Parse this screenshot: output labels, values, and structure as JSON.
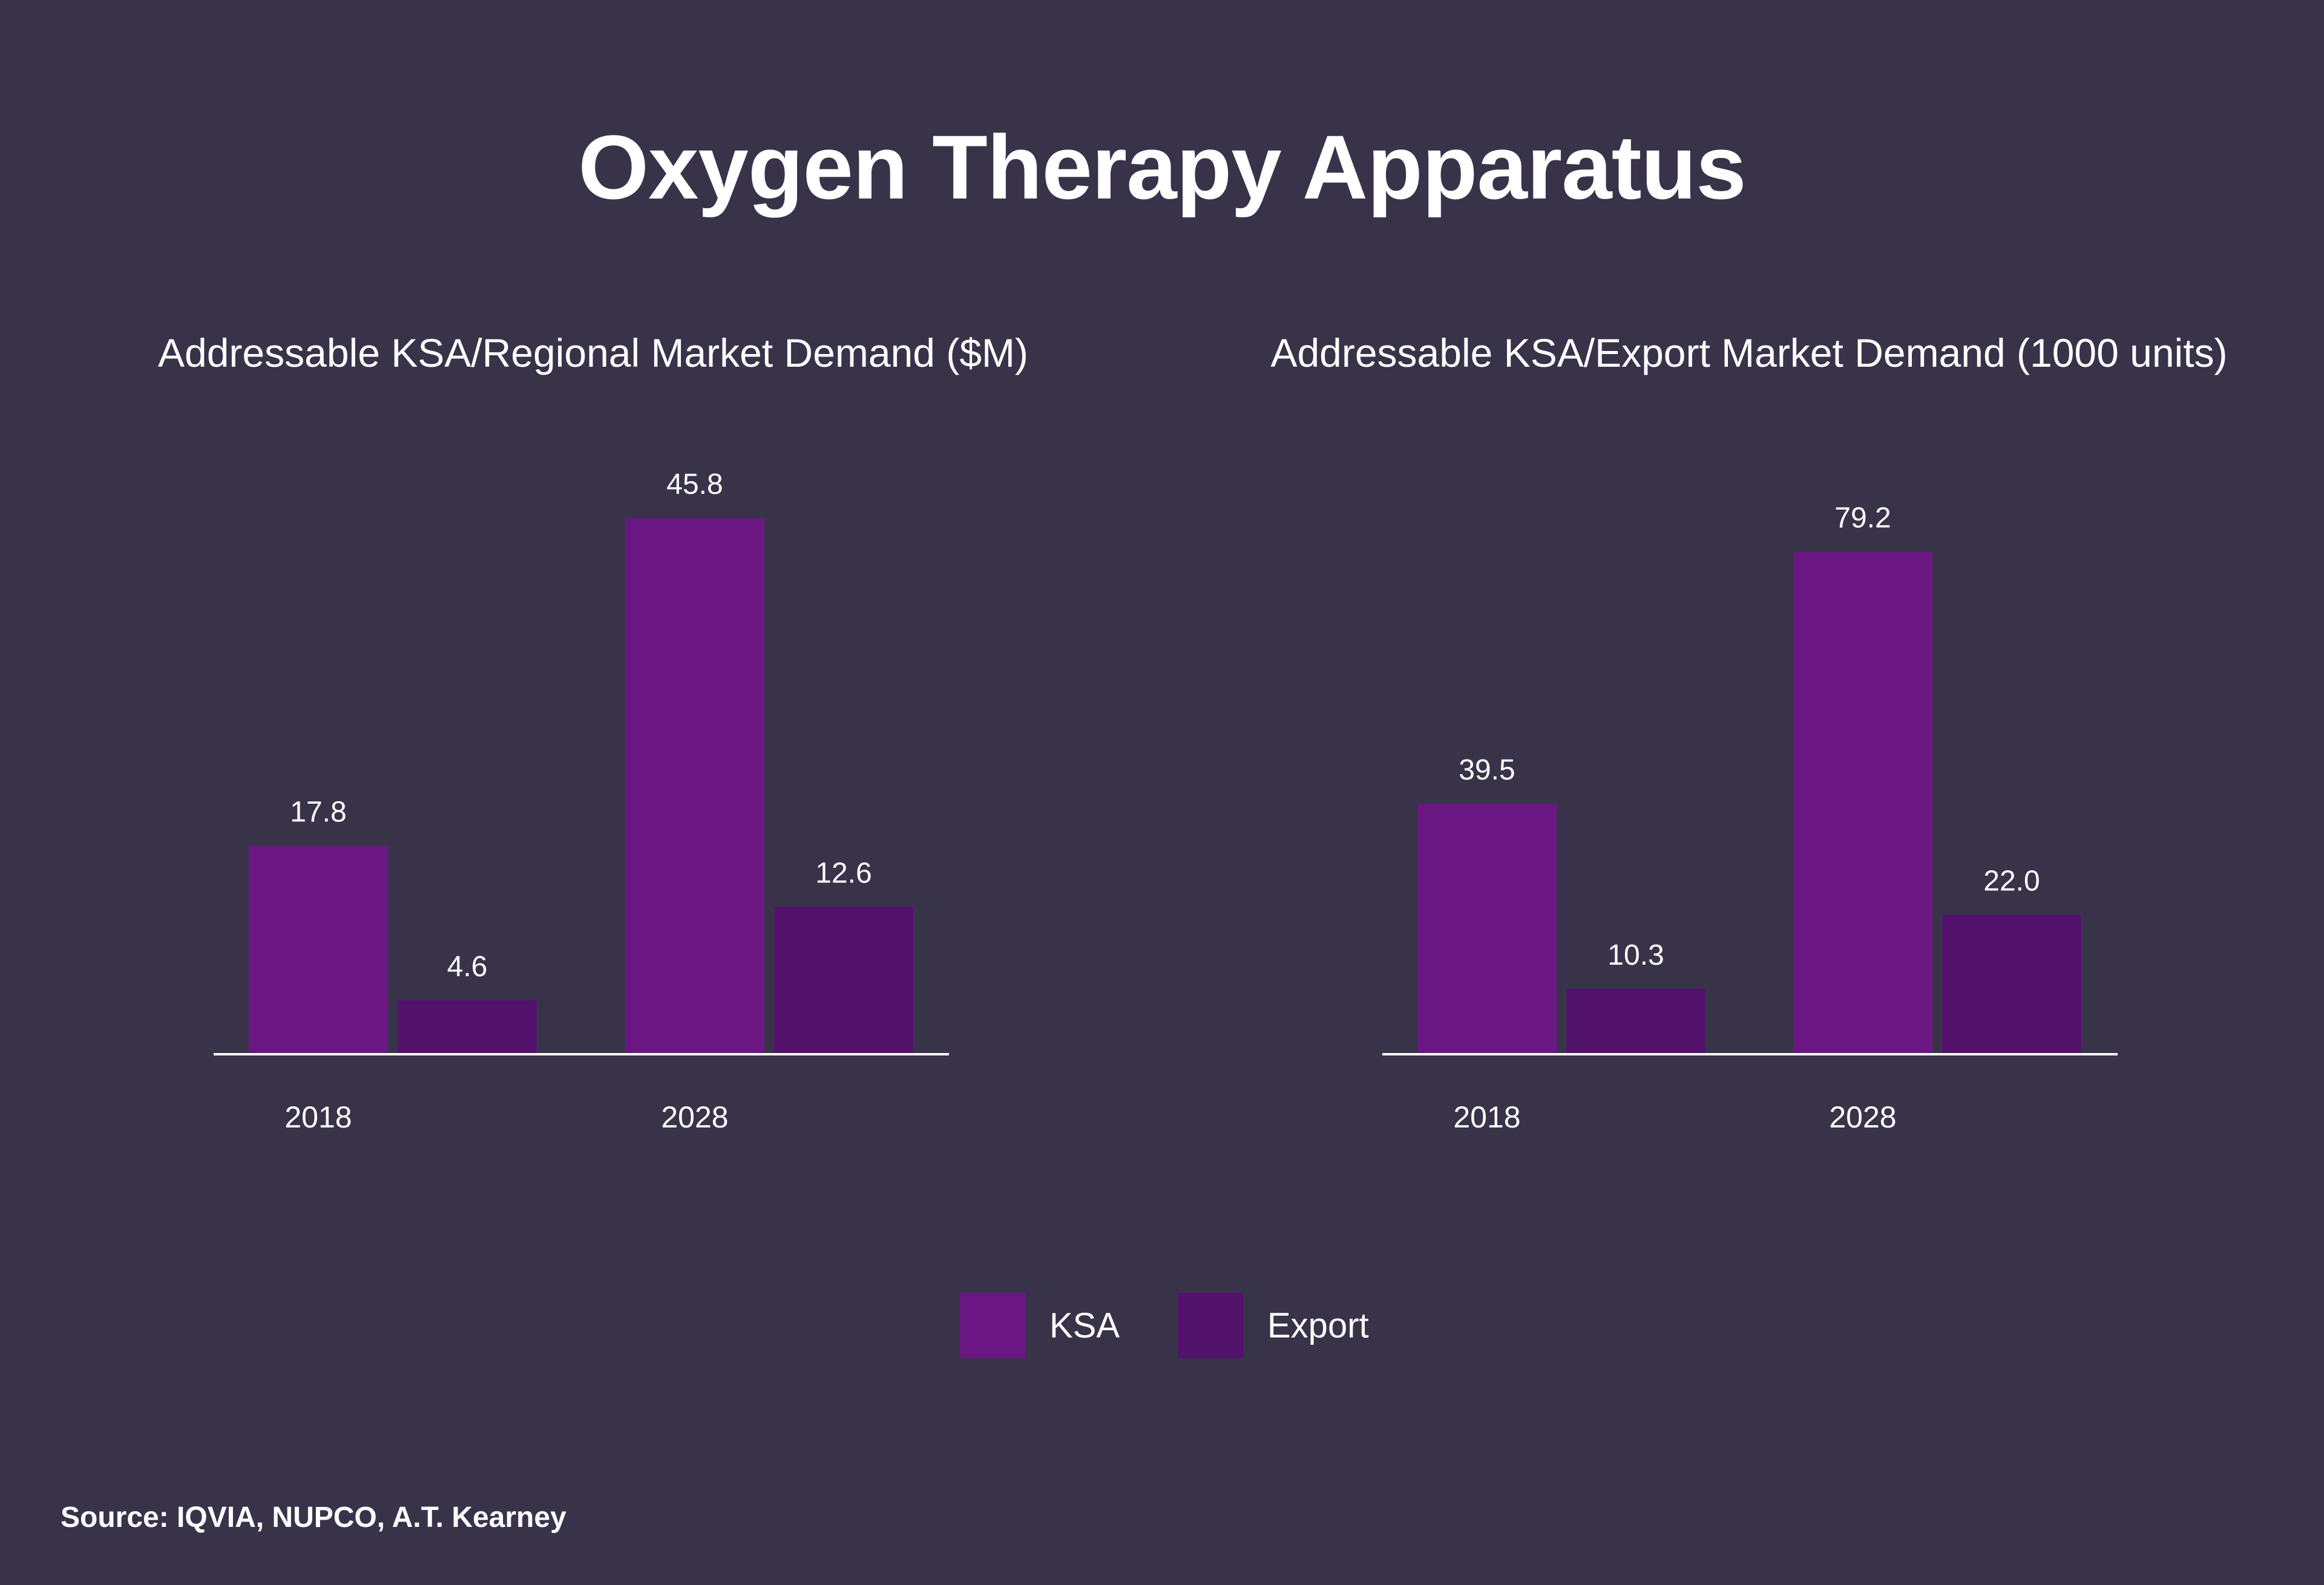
{
  "title": "Oxygen Therapy Apparatus",
  "colors": {
    "background": "#39334a",
    "ksa": "#6a1784",
    "export": "#53136d",
    "text": "#ffffff"
  },
  "chart_data": [
    {
      "type": "bar",
      "title": "Addressable KSA/Regional Market Demand ($M)",
      "categories": [
        "2018",
        "2028"
      ],
      "series": [
        {
          "name": "KSA",
          "values": [
            17.8,
            45.8
          ],
          "labels": [
            "17.8",
            "45.8"
          ]
        },
        {
          "name": "Export",
          "values": [
            4.6,
            12.6
          ],
          "labels": [
            "4.6",
            "12.6"
          ]
        }
      ],
      "xlabel": "",
      "ylabel": "",
      "ylim": [
        0,
        45.8
      ],
      "grid": false,
      "legend": "bottom-center"
    },
    {
      "type": "bar",
      "title": "Addressable KSA/Export Market Demand (1000 units)",
      "categories": [
        "2018",
        "2028"
      ],
      "series": [
        {
          "name": "KSA",
          "values": [
            39.5,
            79.2
          ],
          "labels": [
            "39.5",
            "79.2"
          ]
        },
        {
          "name": "Export",
          "values": [
            10.3,
            22.0
          ],
          "labels": [
            "10.3",
            "22.0"
          ]
        }
      ],
      "xlabel": "",
      "ylabel": "",
      "ylim": [
        0,
        84.5
      ],
      "grid": false,
      "legend": "bottom-center"
    }
  ],
  "legend": {
    "items": [
      {
        "label": "KSA"
      },
      {
        "label": "Export"
      }
    ]
  },
  "source": "Source: IQVIA, NUPCO, A.T. Kearney"
}
